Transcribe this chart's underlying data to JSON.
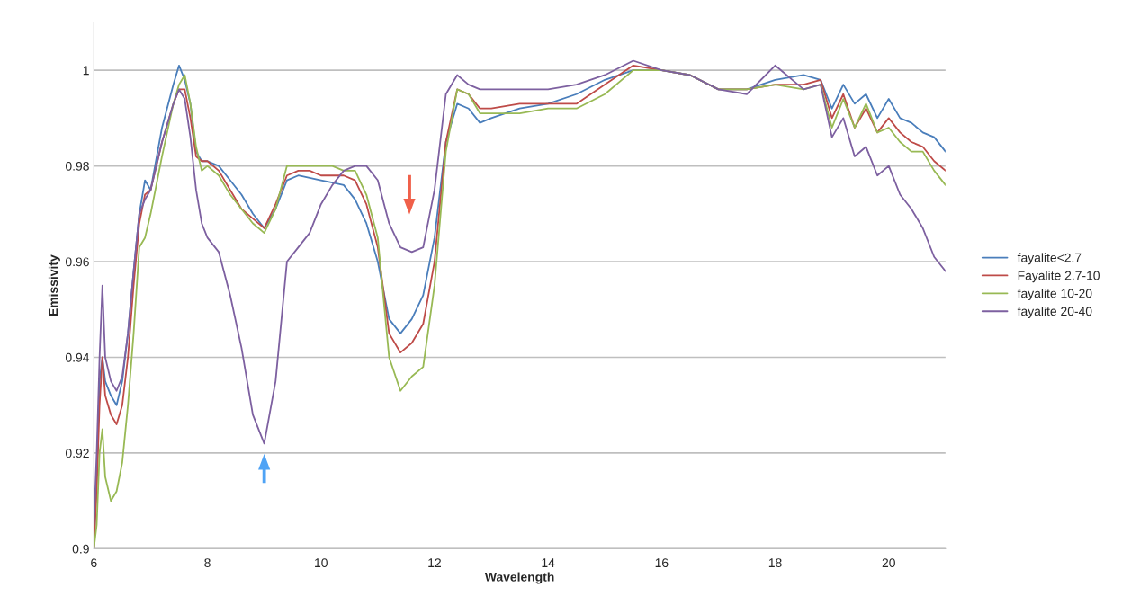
{
  "chart_data": {
    "type": "line",
    "xlabel": "Wavelength",
    "ylabel": "Emissivity",
    "x": [
      6.0,
      6.05,
      6.1,
      6.15,
      6.2,
      6.3,
      6.4,
      6.5,
      6.6,
      6.7,
      6.8,
      6.9,
      7.0,
      7.2,
      7.4,
      7.5,
      7.6,
      7.7,
      7.8,
      7.9,
      8.0,
      8.2,
      8.4,
      8.6,
      8.8,
      9.0,
      9.2,
      9.4,
      9.6,
      9.8,
      10.0,
      10.2,
      10.4,
      10.6,
      10.8,
      11.0,
      11.2,
      11.4,
      11.6,
      11.8,
      12.0,
      12.2,
      12.4,
      12.6,
      12.8,
      13.0,
      13.5,
      14.0,
      14.5,
      15.0,
      15.5,
      16.0,
      16.5,
      17.0,
      17.5,
      18.0,
      18.5,
      18.8,
      19.0,
      19.2,
      19.4,
      19.6,
      19.8,
      20.0,
      20.2,
      20.4,
      20.6,
      20.8,
      21.0
    ],
    "series": [
      {
        "name": "fayalite<2.7",
        "color": "#4a7ebb",
        "values": [
          0.9,
          0.915,
          0.935,
          0.94,
          0.935,
          0.932,
          0.93,
          0.935,
          0.945,
          0.958,
          0.97,
          0.977,
          0.975,
          0.988,
          0.997,
          1.001,
          0.998,
          0.993,
          0.983,
          0.981,
          0.981,
          0.98,
          0.977,
          0.974,
          0.97,
          0.967,
          0.971,
          0.977,
          0.978,
          0.9775,
          0.977,
          0.9765,
          0.976,
          0.973,
          0.968,
          0.96,
          0.948,
          0.945,
          0.948,
          0.953,
          0.965,
          0.985,
          0.993,
          0.992,
          0.989,
          0.99,
          0.992,
          0.993,
          0.995,
          0.998,
          1.0,
          1.0,
          0.999,
          0.996,
          0.996,
          0.998,
          0.999,
          0.998,
          0.992,
          0.997,
          0.993,
          0.995,
          0.99,
          0.994,
          0.99,
          0.989,
          0.987,
          0.986,
          0.983
        ]
      },
      {
        "name": "Fayalite 2.7-10",
        "color": "#be4b48",
        "values": [
          0.9,
          0.912,
          0.93,
          0.94,
          0.932,
          0.928,
          0.926,
          0.93,
          0.94,
          0.955,
          0.968,
          0.974,
          0.975,
          0.985,
          0.993,
          0.996,
          0.996,
          0.99,
          0.982,
          0.981,
          0.981,
          0.979,
          0.975,
          0.971,
          0.969,
          0.967,
          0.972,
          0.978,
          0.979,
          0.979,
          0.978,
          0.978,
          0.978,
          0.977,
          0.972,
          0.963,
          0.945,
          0.941,
          0.943,
          0.947,
          0.96,
          0.985,
          0.996,
          0.995,
          0.992,
          0.992,
          0.993,
          0.993,
          0.993,
          0.997,
          1.001,
          1.0,
          0.999,
          0.996,
          0.996,
          0.997,
          0.997,
          0.998,
          0.99,
          0.995,
          0.988,
          0.992,
          0.987,
          0.99,
          0.987,
          0.985,
          0.984,
          0.981,
          0.979
        ]
      },
      {
        "name": "fayalite 10-20",
        "color": "#98b954",
        "values": [
          0.9,
          0.905,
          0.92,
          0.925,
          0.915,
          0.91,
          0.912,
          0.918,
          0.93,
          0.945,
          0.963,
          0.965,
          0.97,
          0.982,
          0.993,
          0.997,
          0.999,
          0.993,
          0.984,
          0.979,
          0.98,
          0.978,
          0.974,
          0.971,
          0.968,
          0.966,
          0.971,
          0.98,
          0.98,
          0.98,
          0.98,
          0.98,
          0.979,
          0.979,
          0.974,
          0.965,
          0.94,
          0.933,
          0.936,
          0.938,
          0.955,
          0.983,
          0.996,
          0.995,
          0.991,
          0.991,
          0.991,
          0.992,
          0.992,
          0.995,
          1.0,
          1.0,
          0.999,
          0.996,
          0.996,
          0.997,
          0.996,
          0.997,
          0.988,
          0.994,
          0.988,
          0.993,
          0.987,
          0.988,
          0.985,
          0.983,
          0.983,
          0.979,
          0.976
        ]
      },
      {
        "name": "fayalite 20-40",
        "color": "#7d60a0",
        "values": [
          0.905,
          0.92,
          0.94,
          0.955,
          0.94,
          0.935,
          0.933,
          0.936,
          0.945,
          0.958,
          0.97,
          0.973,
          0.975,
          0.985,
          0.993,
          0.996,
          0.994,
          0.986,
          0.975,
          0.968,
          0.965,
          0.962,
          0.953,
          0.942,
          0.928,
          0.922,
          0.935,
          0.96,
          0.963,
          0.966,
          0.972,
          0.976,
          0.979,
          0.98,
          0.98,
          0.977,
          0.968,
          0.963,
          0.962,
          0.963,
          0.975,
          0.995,
          0.999,
          0.997,
          0.996,
          0.996,
          0.996,
          0.996,
          0.997,
          0.999,
          1.002,
          1.0,
          0.999,
          0.996,
          0.995,
          1.001,
          0.996,
          0.997,
          0.986,
          0.99,
          0.982,
          0.984,
          0.978,
          0.98,
          0.974,
          0.971,
          0.967,
          0.961,
          0.958
        ]
      }
    ],
    "xlim": [
      6,
      21
    ],
    "xticks": [
      6,
      8,
      10,
      12,
      14,
      16,
      18,
      20
    ],
    "ylim": [
      0.9,
      1.01
    ],
    "yticks": [
      0.9,
      0.92,
      0.94,
      0.96,
      0.98,
      1
    ],
    "grid": "y",
    "legend": "right",
    "marker": "none",
    "line_style": "solid"
  }
}
